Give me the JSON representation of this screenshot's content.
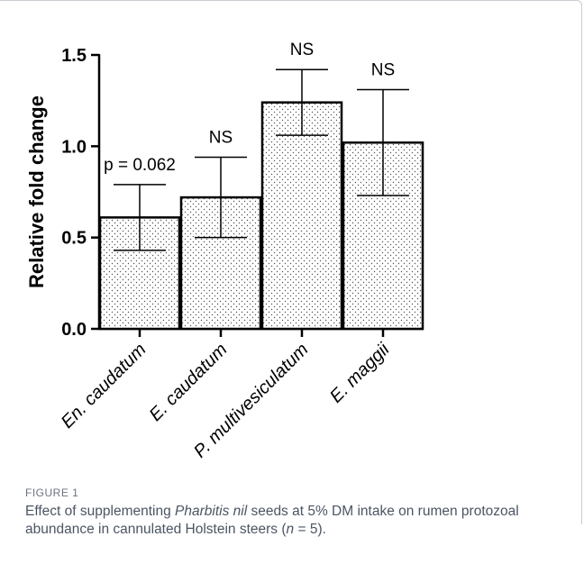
{
  "chart_data": {
    "type": "bar",
    "categories": [
      "En. caudatum",
      "E. caudatum",
      "P. multivesiculatum",
      "E. maggii"
    ],
    "values": [
      0.61,
      0.72,
      1.24,
      1.02
    ],
    "error_upper": [
      0.79,
      0.94,
      1.42,
      1.31
    ],
    "error_lower": [
      0.43,
      0.5,
      1.06,
      0.73
    ],
    "annotations": [
      "p = 0.062",
      "NS",
      "NS",
      "NS"
    ],
    "title": "",
    "xlabel": "",
    "ylabel": "Relative fold change",
    "ylim": [
      0,
      1.5
    ],
    "yticks": [
      0.0,
      0.5,
      1.0,
      1.5
    ],
    "ytick_labels": [
      "0.0",
      "0.5",
      "1.0",
      "1.5"
    ],
    "grid": false,
    "bar_fill": "dotted"
  },
  "caption": {
    "label": "FIGURE 1",
    "part1": "Effect of supplementing ",
    "italic1": "Pharbitis nil",
    "part2": " seeds at 5% DM intake on rumen protozoal abundance in cannulated Holstein steers (",
    "italic2": "n",
    "part3": " = 5)."
  },
  "colors": {
    "bar_edge": "#000000",
    "caption_text": "#4b5563",
    "frame": "#c9ccd1"
  }
}
